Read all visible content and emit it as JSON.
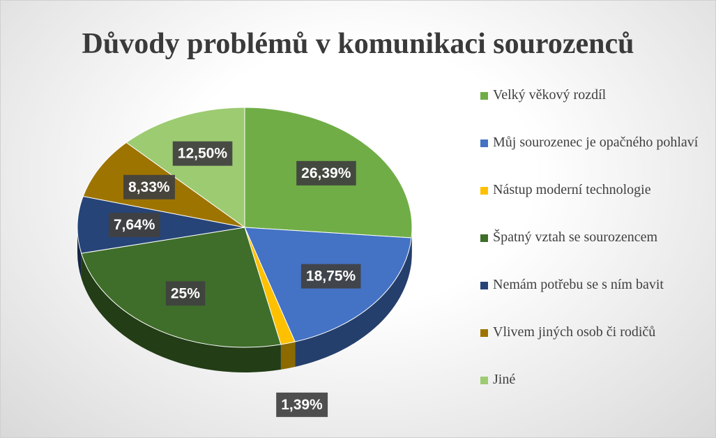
{
  "chart_data": {
    "type": "pie",
    "title": "Důvody problémů v komunikaci sourozenců",
    "categories": [
      "Velký věkový rozdíl",
      "Můj sourozenec je opačného pohlaví",
      "Nástup moderní technologie",
      "Špatný vztah se sourozencem",
      "Nemám potřebu se s ním bavit",
      "Vlivem jiných osob či rodičů",
      "Jiné"
    ],
    "values": [
      26.39,
      18.75,
      1.39,
      25,
      7.64,
      8.33,
      12.5
    ],
    "value_labels": [
      "26,39%",
      "18,75%",
      "1,39%",
      "25%",
      "7,64%",
      "8,33%",
      "12,50%"
    ],
    "colors": [
      "#70ad47",
      "#4472c4",
      "#ffc000",
      "#3f6e2a",
      "#264478",
      "#9e7400",
      "#9dcb71"
    ],
    "legend": "right"
  }
}
